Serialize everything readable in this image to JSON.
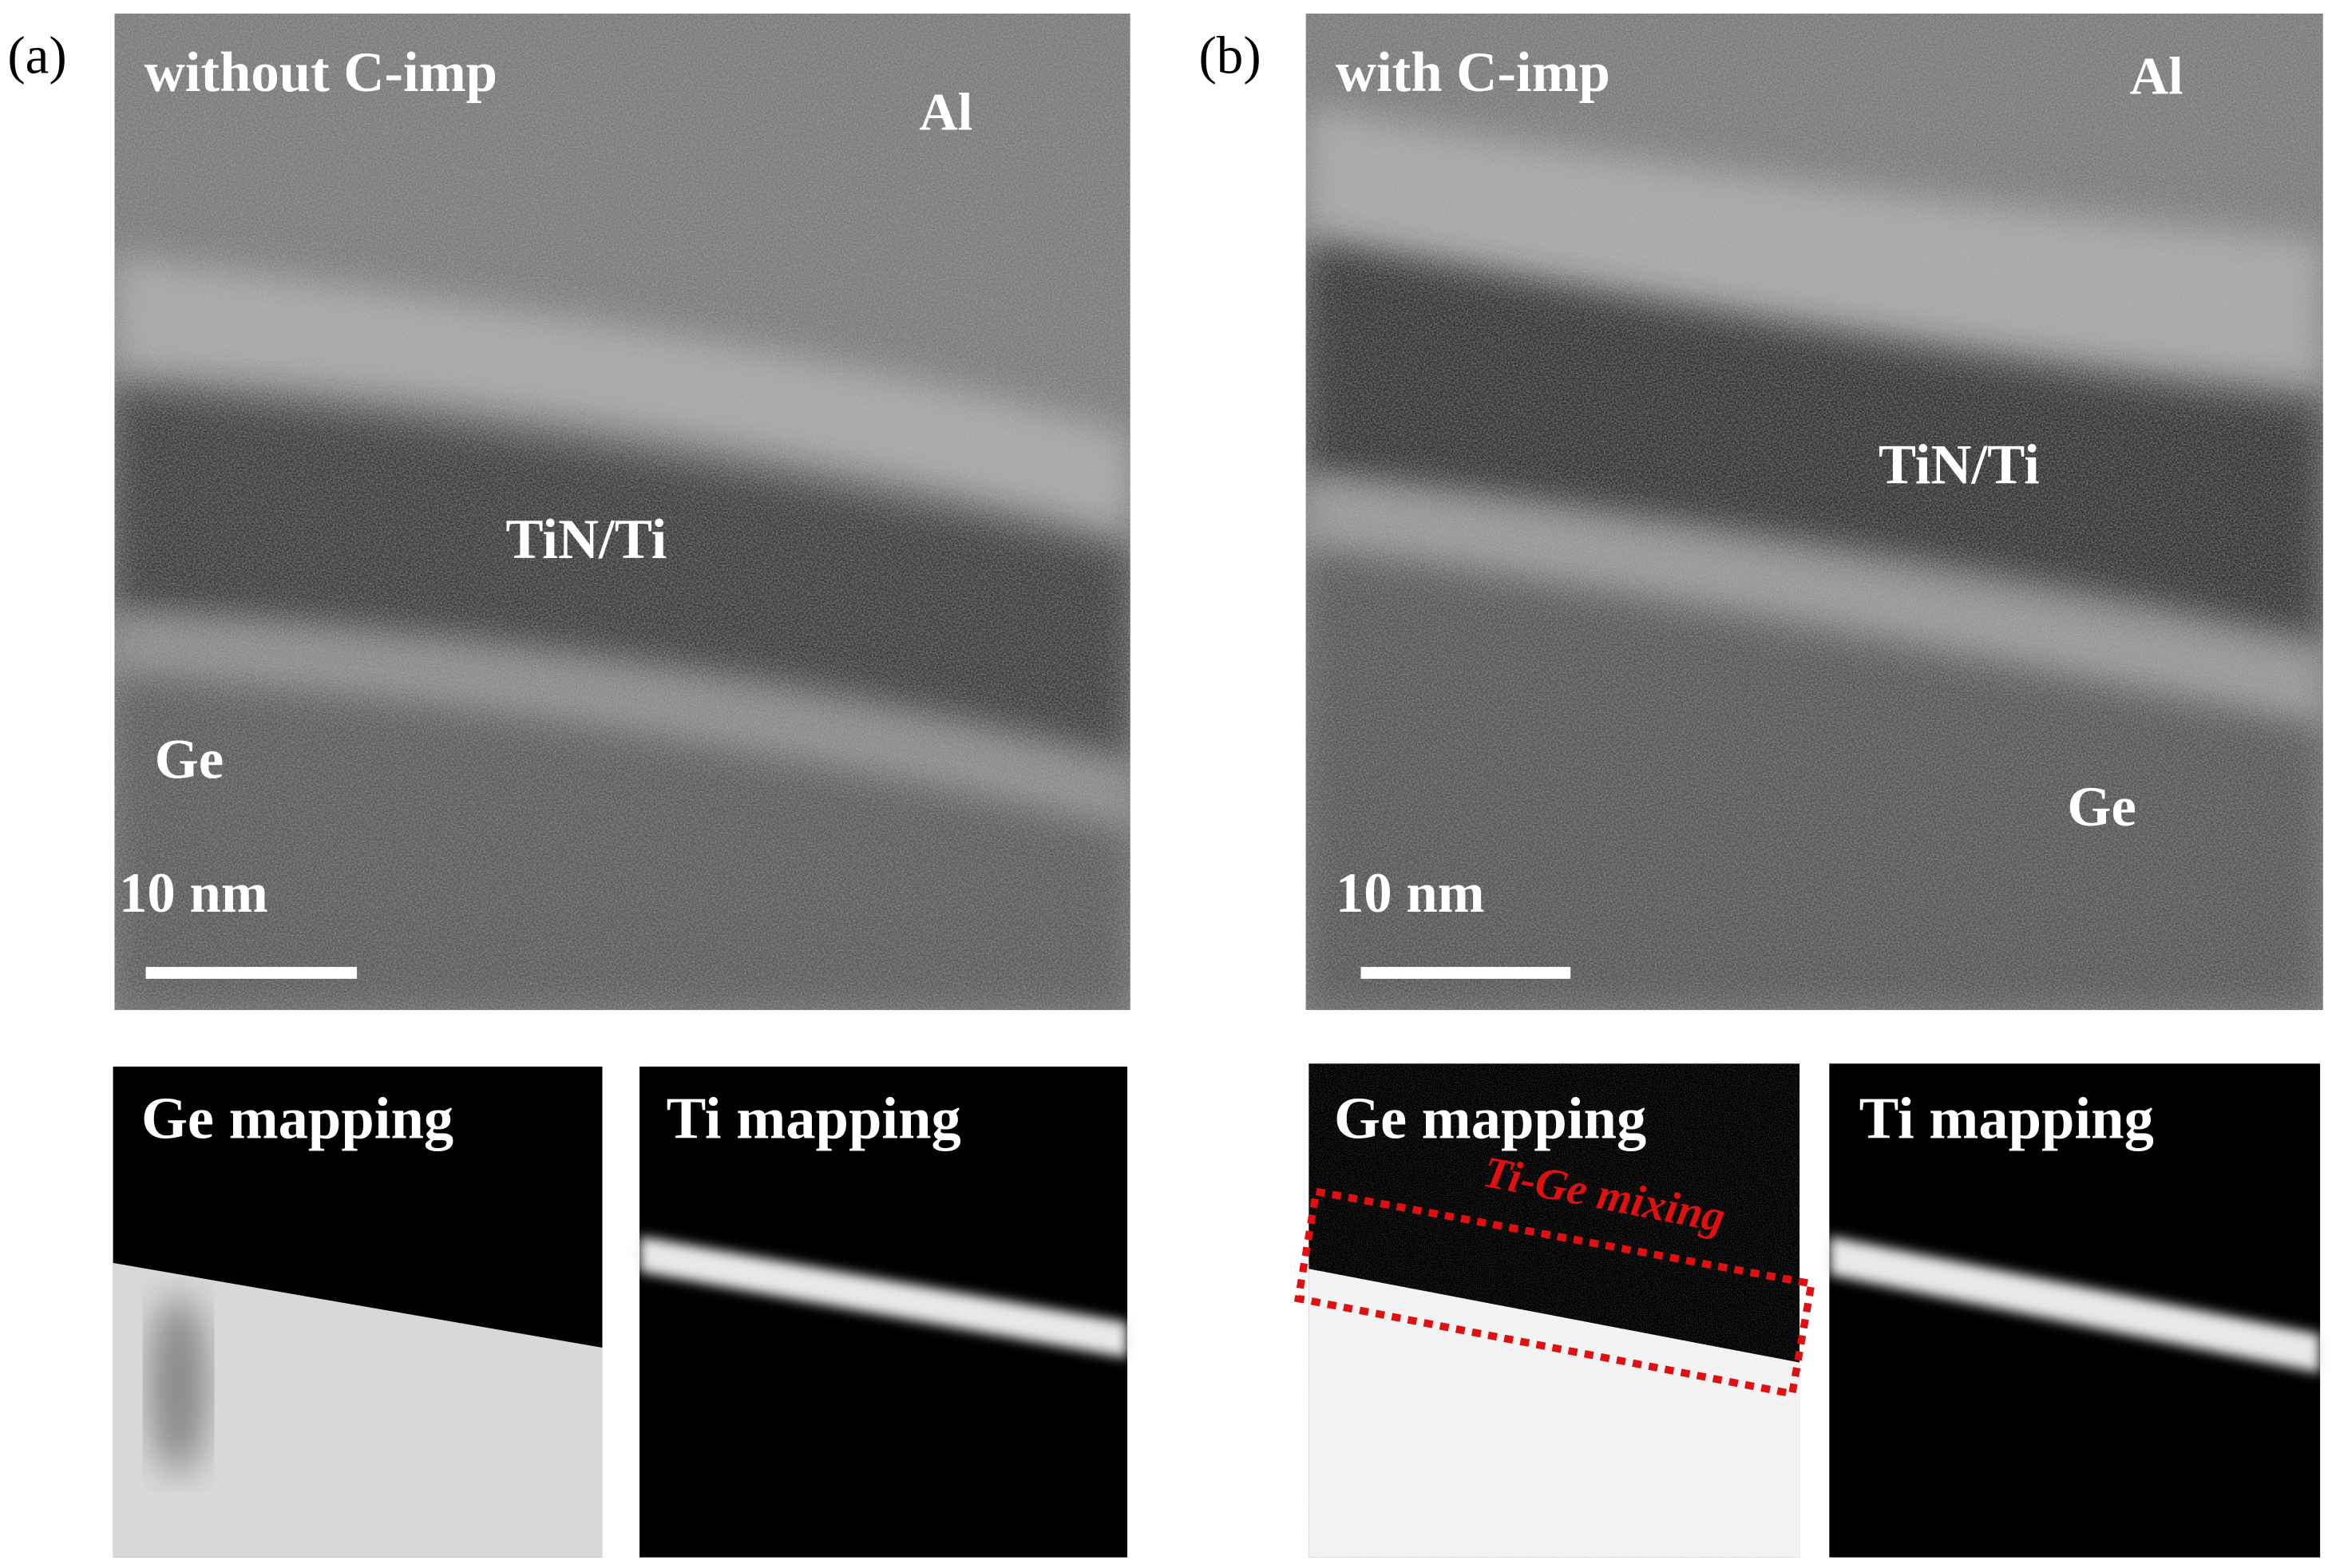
{
  "panels": [
    {
      "label": "(a)",
      "title": "without C-imp",
      "layer_labels": [
        "Al",
        "TiN/Ti",
        "Ge"
      ],
      "scale_bar": "10 nm",
      "maps": [
        {
          "title": "Ge mapping"
        },
        {
          "title": "Ti mapping"
        }
      ]
    },
    {
      "label": "(b)",
      "title": "with C-imp",
      "layer_labels": [
        "Al",
        "TiN/Ti",
        "Ge"
      ],
      "scale_bar": "10 nm",
      "maps": [
        {
          "title": "Ge mapping"
        },
        {
          "title": "Ti mapping"
        }
      ],
      "annotation": "Ti-Ge mixing"
    }
  ]
}
